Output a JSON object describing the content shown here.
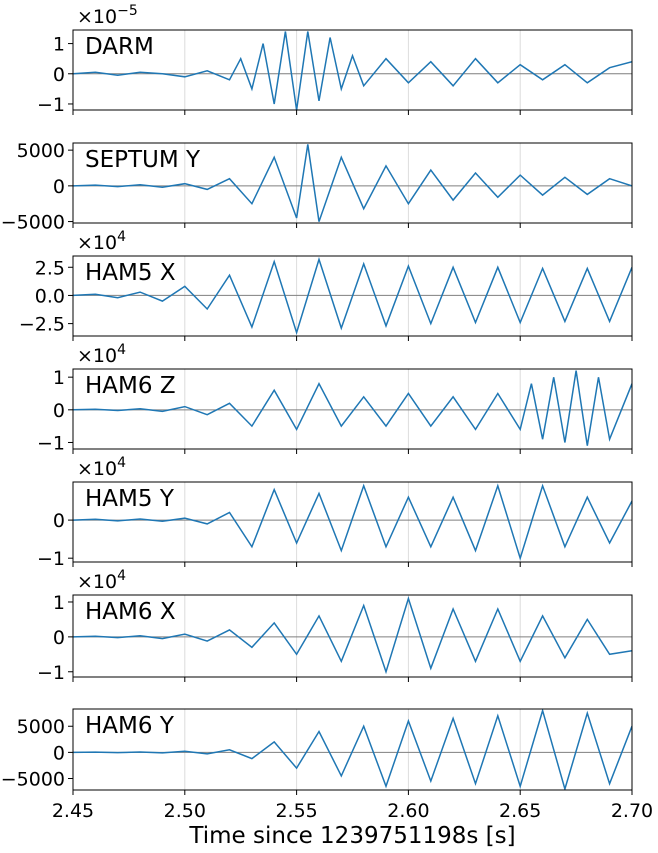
{
  "chart_data": {
    "type": "line",
    "xlabel": "Time since 1239751198s [s]",
    "xlim": [
      2.45,
      2.7
    ],
    "xticks": [
      2.45,
      2.5,
      2.55,
      2.6,
      2.65,
      2.7
    ],
    "xtick_labels": [
      "2.45",
      "2.50",
      "2.55",
      "2.60",
      "2.65",
      "2.70"
    ],
    "grid": true,
    "line_color": "#1f77b4",
    "panels": [
      {
        "label": "DARM",
        "exponent": "×10",
        "exponent_power": "−5",
        "ylim": [
          -1.2,
          1.45
        ],
        "yticks": [
          -1,
          0,
          1
        ],
        "ytick_labels": [
          "−1",
          "0",
          "1"
        ],
        "x": [
          2.45,
          2.46,
          2.47,
          2.48,
          2.49,
          2.5,
          2.51,
          2.52,
          2.525,
          2.53,
          2.535,
          2.54,
          2.545,
          2.55,
          2.555,
          2.56,
          2.565,
          2.57,
          2.575,
          2.58,
          2.59,
          2.6,
          2.61,
          2.62,
          2.63,
          2.64,
          2.65,
          2.66,
          2.67,
          2.68,
          2.69,
          2.7
        ],
        "y": [
          0.0,
          0.05,
          -0.05,
          0.05,
          0.0,
          -0.1,
          0.1,
          -0.2,
          0.5,
          -0.5,
          1.0,
          -1.0,
          1.4,
          -1.2,
          1.4,
          -0.9,
          1.2,
          -0.5,
          0.6,
          -0.4,
          0.5,
          -0.3,
          0.4,
          -0.4,
          0.5,
          -0.3,
          0.3,
          -0.2,
          0.3,
          -0.3,
          0.2,
          0.4
        ]
      },
      {
        "label": "SEPTUM Y",
        "exponent": "",
        "exponent_power": "",
        "ylim": [
          -5200,
          6000
        ],
        "yticks": [
          -5000,
          0,
          5000
        ],
        "ytick_labels": [
          "−5000",
          "0",
          "5000"
        ],
        "x": [
          2.45,
          2.46,
          2.47,
          2.48,
          2.49,
          2.5,
          2.51,
          2.52,
          2.53,
          2.54,
          2.55,
          2.555,
          2.56,
          2.57,
          2.58,
          2.59,
          2.6,
          2.61,
          2.62,
          2.63,
          2.64,
          2.65,
          2.66,
          2.67,
          2.68,
          2.69,
          2.7
        ],
        "y": [
          0,
          100,
          -100,
          150,
          -200,
          300,
          -500,
          1000,
          -2500,
          4000,
          -4500,
          5800,
          -5000,
          4000,
          -3200,
          2800,
          -2500,
          2200,
          -2000,
          1800,
          -1600,
          1500,
          -1300,
          1200,
          -1200,
          1000,
          0
        ]
      },
      {
        "label": "HAM5 X",
        "exponent": "×10",
        "exponent_power": "4",
        "ylim": [
          -3.6,
          3.5
        ],
        "yticks": [
          -2.5,
          0.0,
          2.5
        ],
        "ytick_labels": [
          "−2.5",
          "0.0",
          "2.5"
        ],
        "x": [
          2.45,
          2.46,
          2.47,
          2.48,
          2.49,
          2.5,
          2.51,
          2.52,
          2.53,
          2.54,
          2.55,
          2.56,
          2.57,
          2.58,
          2.59,
          2.6,
          2.61,
          2.62,
          2.63,
          2.64,
          2.65,
          2.66,
          2.67,
          2.68,
          2.69,
          2.7
        ],
        "y": [
          0,
          0.1,
          -0.2,
          0.3,
          -0.5,
          0.8,
          -1.2,
          1.8,
          -2.8,
          3.0,
          -3.3,
          3.2,
          -2.9,
          2.8,
          -2.7,
          2.6,
          -2.5,
          2.5,
          -2.4,
          2.5,
          -2.4,
          2.4,
          -2.3,
          2.4,
          -2.3,
          2.5
        ]
      },
      {
        "label": "HAM6 Z",
        "exponent": "×10",
        "exponent_power": "4",
        "ylim": [
          -1.2,
          1.25
        ],
        "yticks": [
          -1,
          0,
          1
        ],
        "ytick_labels": [
          "−1",
          "0",
          "1"
        ],
        "x": [
          2.45,
          2.46,
          2.47,
          2.48,
          2.49,
          2.5,
          2.51,
          2.52,
          2.53,
          2.54,
          2.55,
          2.56,
          2.57,
          2.58,
          2.59,
          2.6,
          2.61,
          2.62,
          2.63,
          2.64,
          2.65,
          2.655,
          2.66,
          2.665,
          2.67,
          2.675,
          2.68,
          2.685,
          2.69,
          2.7
        ],
        "y": [
          0,
          0.02,
          -0.02,
          0.03,
          -0.05,
          0.1,
          -0.15,
          0.2,
          -0.5,
          0.6,
          -0.6,
          0.8,
          -0.5,
          0.4,
          -0.5,
          0.5,
          -0.5,
          0.4,
          -0.6,
          0.5,
          -0.6,
          0.8,
          -0.9,
          1.0,
          -1.0,
          1.2,
          -1.1,
          1.0,
          -0.9,
          0.8
        ]
      },
      {
        "label": "HAM5 Y",
        "exponent": "×10",
        "exponent_power": "4",
        "ylim": [
          -1.1,
          1.0
        ],
        "yticks": [
          -1,
          0
        ],
        "ytick_labels": [
          "−1",
          "0"
        ],
        "x": [
          2.45,
          2.46,
          2.47,
          2.48,
          2.49,
          2.5,
          2.51,
          2.52,
          2.53,
          2.54,
          2.55,
          2.56,
          2.57,
          2.58,
          2.59,
          2.6,
          2.61,
          2.62,
          2.63,
          2.64,
          2.65,
          2.66,
          2.67,
          2.68,
          2.69,
          2.7
        ],
        "y": [
          0,
          0.02,
          -0.02,
          0.03,
          -0.03,
          0.05,
          -0.1,
          0.2,
          -0.7,
          0.8,
          -0.6,
          0.7,
          -0.8,
          0.9,
          -0.7,
          0.6,
          -0.7,
          0.6,
          -0.8,
          0.9,
          -1.0,
          0.9,
          -0.7,
          0.6,
          -0.6,
          0.5
        ]
      },
      {
        "label": "HAM6 X",
        "exponent": "×10",
        "exponent_power": "4",
        "ylim": [
          -1.15,
          1.2
        ],
        "yticks": [
          -1,
          0,
          1
        ],
        "ytick_labels": [
          "−1",
          "0",
          "1"
        ],
        "x": [
          2.45,
          2.46,
          2.47,
          2.48,
          2.49,
          2.5,
          2.51,
          2.52,
          2.53,
          2.54,
          2.55,
          2.56,
          2.57,
          2.58,
          2.59,
          2.6,
          2.61,
          2.62,
          2.63,
          2.64,
          2.65,
          2.66,
          2.67,
          2.68,
          2.69,
          2.7
        ],
        "y": [
          0,
          0.02,
          -0.02,
          0.03,
          -0.05,
          0.08,
          -0.12,
          0.2,
          -0.3,
          0.4,
          -0.5,
          0.6,
          -0.7,
          0.9,
          -1.0,
          1.1,
          -0.9,
          0.8,
          -0.7,
          0.8,
          -0.7,
          0.6,
          -0.6,
          0.5,
          -0.5,
          -0.4
        ]
      },
      {
        "label": "HAM6 Y",
        "exponent": "",
        "exponent_power": "",
        "ylim": [
          -7200,
          8300
        ],
        "yticks": [
          -5000,
          0,
          5000
        ],
        "ytick_labels": [
          "−5000",
          "0",
          "5000"
        ],
        "x": [
          2.45,
          2.46,
          2.47,
          2.48,
          2.49,
          2.5,
          2.51,
          2.52,
          2.53,
          2.54,
          2.55,
          2.56,
          2.57,
          2.58,
          2.59,
          2.6,
          2.61,
          2.62,
          2.63,
          2.64,
          2.65,
          2.66,
          2.67,
          2.68,
          2.69,
          2.7
        ],
        "y": [
          0,
          50,
          -50,
          80,
          -100,
          200,
          -300,
          500,
          -1200,
          2000,
          -3000,
          4000,
          -4500,
          5000,
          -6500,
          6000,
          -5500,
          6500,
          -6000,
          7000,
          -6500,
          8000,
          -7000,
          7500,
          -6000,
          5000
        ]
      }
    ]
  }
}
